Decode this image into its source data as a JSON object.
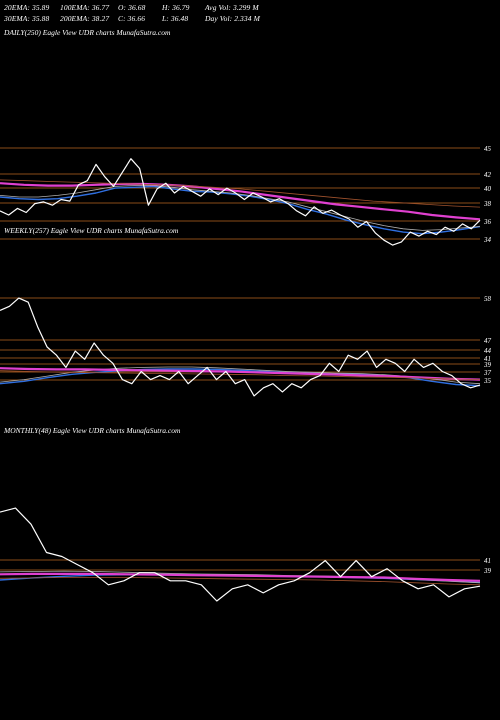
{
  "header": {
    "row1": [
      "20EMA: 35.89",
      "100EMA: 36.77",
      "O: 36.68",
      "H: 36.79",
      "Avg Vol: 3.299  M"
    ],
    "row2": [
      "30EMA: 35.88",
      "200EMA: 38.27",
      "C: 36.66",
      "L: 36.48",
      "Day Vol: 2.334  M"
    ]
  },
  "colors": {
    "background": "#000000",
    "price": "#ffffff",
    "ema_blue": "#2f6fe0",
    "ema_magenta": "#e040d0",
    "ema_gray": "#b0b0b0",
    "ema_brown": "#a0522d",
    "level_line": "#b8661f"
  },
  "chart_data": [
    {
      "type": "line",
      "title": "DAILY(250) Eagle  View  UDR charts MunafaSutra.com",
      "y_ticks": [
        45,
        42,
        40,
        38,
        36,
        34
      ],
      "series": [
        {
          "role": "price",
          "values": [
            37.8,
            37.3,
            38.1,
            37.6,
            38.7,
            38.9,
            38.5,
            39.2,
            39.0,
            41.0,
            41.5,
            43.5,
            42.0,
            40.8,
            42.5,
            44.2,
            43.0,
            38.5,
            40.5,
            41.2,
            40.0,
            40.8,
            40.2,
            39.6,
            40.5,
            39.8,
            40.6,
            40.0,
            39.2,
            40.0,
            39.5,
            38.9,
            39.3,
            38.7,
            37.8,
            37.2,
            38.3,
            37.5,
            37.9,
            37.3,
            36.8,
            35.8,
            36.5,
            35.1,
            34.2,
            33.6,
            34.0,
            35.2,
            34.7,
            35.3,
            34.9,
            35.8,
            35.3,
            36.2,
            35.6,
            36.66
          ]
        },
        {
          "role": "ema",
          "color": "blue",
          "values": [
            39.5,
            39.3,
            39.2,
            39.3,
            39.6,
            40.0,
            40.6,
            40.7,
            40.8,
            40.5,
            40.2,
            40.1,
            39.9,
            39.6,
            39.2,
            38.7,
            38.0,
            37.4,
            36.7,
            36.1,
            35.6,
            35.2,
            35.0,
            35.2,
            35.5,
            35.89
          ]
        },
        {
          "role": "ema",
          "color": "gray",
          "values": [
            39.7,
            39.5,
            39.5,
            39.7,
            40.0,
            40.4,
            40.8,
            40.9,
            40.9,
            40.7,
            40.4,
            40.2,
            40.0,
            39.7,
            39.3,
            38.9,
            38.3,
            37.7,
            37.1,
            36.5,
            36.0,
            35.6,
            35.4,
            35.5,
            35.7,
            35.88
          ]
        },
        {
          "role": "ema",
          "color": "magenta",
          "values": [
            41.2,
            41.0,
            40.9,
            40.9,
            41.0,
            41.1,
            41.1,
            41.0,
            40.8,
            40.5,
            40.2,
            39.8,
            39.4,
            39.0,
            38.6,
            38.3,
            38.0,
            37.7,
            37.3,
            37.0,
            36.77
          ]
        },
        {
          "role": "ema",
          "color": "brown",
          "values": [
            41.6,
            41.5,
            41.4,
            41.3,
            41.2,
            41.1,
            41.0,
            40.9,
            40.7,
            40.5,
            40.2,
            39.9,
            39.6,
            39.3,
            39.0,
            38.8,
            38.6,
            38.4,
            38.27
          ]
        }
      ]
    },
    {
      "type": "line",
      "title": "WEEKLY(257) Eagle  View  UDR charts MunafaSutra.com",
      "y_ticks": [
        58,
        47,
        44,
        41,
        39,
        37,
        35
      ],
      "series": [
        {
          "role": "price",
          "values": [
            55,
            56,
            58,
            57,
            51,
            46,
            44,
            41,
            45,
            43,
            47,
            44,
            42,
            38,
            37,
            40,
            38,
            39,
            38,
            40,
            37,
            39,
            41,
            38,
            40,
            37,
            38,
            34,
            36,
            37,
            35,
            37,
            36,
            38,
            39,
            42,
            40,
            44,
            43,
            45,
            41,
            43,
            42,
            40,
            43,
            41,
            42,
            40,
            39,
            37,
            36,
            36.66
          ]
        },
        {
          "role": "ema",
          "color": "blue",
          "values": [
            37.0,
            37.6,
            38.5,
            39.3,
            39.8,
            40.2,
            40.5,
            40.6,
            40.6,
            40.5,
            40.3,
            40.0,
            39.7,
            39.5,
            39.4,
            39.3,
            39.0,
            38.5,
            37.6,
            36.8,
            36.5
          ]
        },
        {
          "role": "ema",
          "color": "gray",
          "values": [
            37.4,
            38.0,
            38.9,
            39.8,
            40.4,
            40.8,
            41.0,
            41.1,
            41.1,
            40.9,
            40.6,
            40.3,
            40.0,
            39.8,
            39.6,
            39.5,
            39.2,
            38.8,
            38.2,
            37.4,
            37.0
          ]
        },
        {
          "role": "ema",
          "color": "magenta",
          "values": [
            40.8,
            40.6,
            40.5,
            40.5,
            40.4,
            40.3,
            40.2,
            40.1,
            40.0,
            39.8,
            39.6,
            39.4,
            39.2,
            39.0,
            38.8,
            38.5,
            38.2,
            38.0
          ]
        },
        {
          "role": "ema",
          "color": "brown",
          "values": [
            40.2,
            40.0,
            39.8,
            39.7,
            39.6,
            39.5,
            39.4,
            39.3,
            39.2,
            39.0,
            38.9,
            38.7,
            38.6,
            38.4,
            38.2,
            38.0
          ]
        }
      ]
    },
    {
      "type": "line",
      "title": "MONTHLY(48) Eagle  View  UDR charts MunafaSutra.com",
      "y_ticks": [
        41,
        39
      ],
      "series": [
        {
          "role": "price",
          "values": [
            55,
            56,
            52,
            45,
            44,
            42,
            40,
            37,
            38,
            40,
            40,
            38,
            38,
            37,
            33,
            36,
            37,
            35,
            37,
            38,
            40,
            43,
            39,
            43,
            39,
            41,
            38,
            36,
            37,
            34,
            36,
            36.66
          ]
        },
        {
          "role": "ema",
          "color": "blue",
          "values": [
            38.2,
            38.7,
            39.1,
            39.4,
            39.5,
            39.5,
            39.4,
            39.3,
            39.2,
            39.1,
            39.0,
            38.8,
            38.6,
            38.3,
            38.0,
            37.6
          ]
        },
        {
          "role": "ema",
          "color": "gray",
          "values": [
            40.2,
            40.3,
            40.4,
            40.3,
            40.1,
            39.9,
            39.7,
            39.6,
            39.5,
            39.3,
            39.2,
            39.0,
            38.7,
            38.3,
            37.9,
            37.5
          ]
        },
        {
          "role": "ema",
          "color": "magenta",
          "values": [
            39.6,
            39.7,
            39.7,
            39.7,
            39.6,
            39.5,
            39.4,
            39.3,
            39.2,
            39.1,
            39.0,
            38.9,
            38.8,
            38.5,
            38.2,
            38.0
          ]
        },
        {
          "role": "ema",
          "color": "brown",
          "values": [
            38.6,
            38.7,
            38.8,
            38.8,
            38.8,
            38.7,
            38.6,
            38.5,
            38.4,
            38.3,
            38.2,
            38.0,
            37.8,
            37.5,
            37.2,
            37.0
          ]
        }
      ]
    }
  ]
}
